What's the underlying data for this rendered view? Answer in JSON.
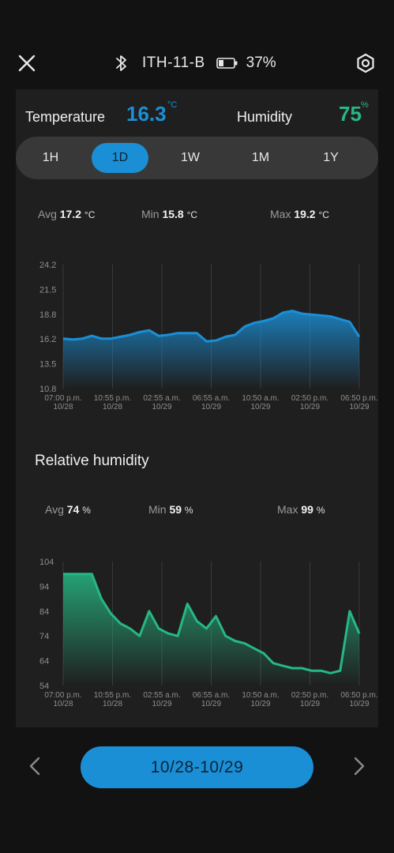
{
  "header": {
    "device_name": "ITH-11-B",
    "battery_percent": "37%",
    "icons": {
      "close": "close-icon",
      "bluetooth": "bluetooth-icon",
      "battery": "battery-icon",
      "settings": "settings-icon"
    }
  },
  "readings": {
    "temperature_label": "Temperature",
    "temperature_value": "16.3",
    "temperature_unit": "°C",
    "humidity_label": "Humidity",
    "humidity_value": "75",
    "humidity_unit": "%"
  },
  "range_tabs": [
    {
      "label": "1H",
      "active": false
    },
    {
      "label": "1D",
      "active": true
    },
    {
      "label": "1W",
      "active": false
    },
    {
      "label": "1M",
      "active": false
    },
    {
      "label": "1Y",
      "active": false
    }
  ],
  "temp_stats": {
    "avg_label": "Avg",
    "avg_value": "17.2",
    "avg_unit": "°C",
    "min_label": "Min",
    "min_value": "15.8",
    "min_unit": "°C",
    "max_label": "Max",
    "max_value": "19.2",
    "max_unit": "°C"
  },
  "humidity_section_title": "Relative humidity",
  "hum_stats": {
    "avg_label": "Avg",
    "avg_value": "74",
    "avg_unit": "%",
    "min_label": "Min",
    "min_value": "59",
    "min_unit": "%",
    "max_label": "Max",
    "max_value": "99",
    "max_unit": "%"
  },
  "chart_data": [
    {
      "type": "area",
      "color": "#1a8fd6",
      "yticks": [
        "24.2",
        "21.5",
        "18.8",
        "16.2",
        "13.5",
        "10.8"
      ],
      "ylim": [
        10.8,
        24.2
      ],
      "xticks": [
        {
          "time": "07:00 p.m.",
          "date": "10/28"
        },
        {
          "time": "10:55 p.m.",
          "date": "10/28"
        },
        {
          "time": "02:55 a.m.",
          "date": "10/29"
        },
        {
          "time": "06:55 a.m.",
          "date": "10/29"
        },
        {
          "time": "10:50 a.m.",
          "date": "10/29"
        },
        {
          "time": "02:50 p.m.",
          "date": "10/29"
        },
        {
          "time": "06:50 p.m.",
          "date": "10/29"
        }
      ],
      "values": [
        16.2,
        16.1,
        16.2,
        16.5,
        16.2,
        16.2,
        16.4,
        16.6,
        16.9,
        17.1,
        16.5,
        16.6,
        16.8,
        16.8,
        16.8,
        15.9,
        16.0,
        16.4,
        16.6,
        17.5,
        17.9,
        18.1,
        18.4,
        19.0,
        19.2,
        18.9,
        18.8,
        18.7,
        18.6,
        18.3,
        18.0,
        16.4
      ]
    },
    {
      "type": "area",
      "color": "#26b884",
      "yticks": [
        "104",
        "94",
        "84",
        "74",
        "64",
        "54"
      ],
      "ylim": [
        54,
        104
      ],
      "xticks": [
        {
          "time": "07:00 p.m.",
          "date": "10/28"
        },
        {
          "time": "10:55 p.m.",
          "date": "10/28"
        },
        {
          "time": "02:55 a.m.",
          "date": "10/29"
        },
        {
          "time": "06:55 a.m.",
          "date": "10/29"
        },
        {
          "time": "10:50 a.m.",
          "date": "10/29"
        },
        {
          "time": "02:50 p.m.",
          "date": "10/29"
        },
        {
          "time": "06:50 p.m.",
          "date": "10/29"
        }
      ],
      "values": [
        99,
        99,
        99,
        99,
        89,
        83,
        79,
        77,
        74,
        84,
        77,
        75,
        74,
        87,
        80,
        77,
        82,
        74,
        72,
        71,
        69,
        67,
        63,
        62,
        61,
        61,
        60,
        60,
        59,
        60,
        84,
        75
      ]
    }
  ],
  "footer": {
    "date_range": "10/28-10/29",
    "icons": {
      "prev": "chevron-left-icon",
      "next": "chevron-right-icon"
    }
  }
}
